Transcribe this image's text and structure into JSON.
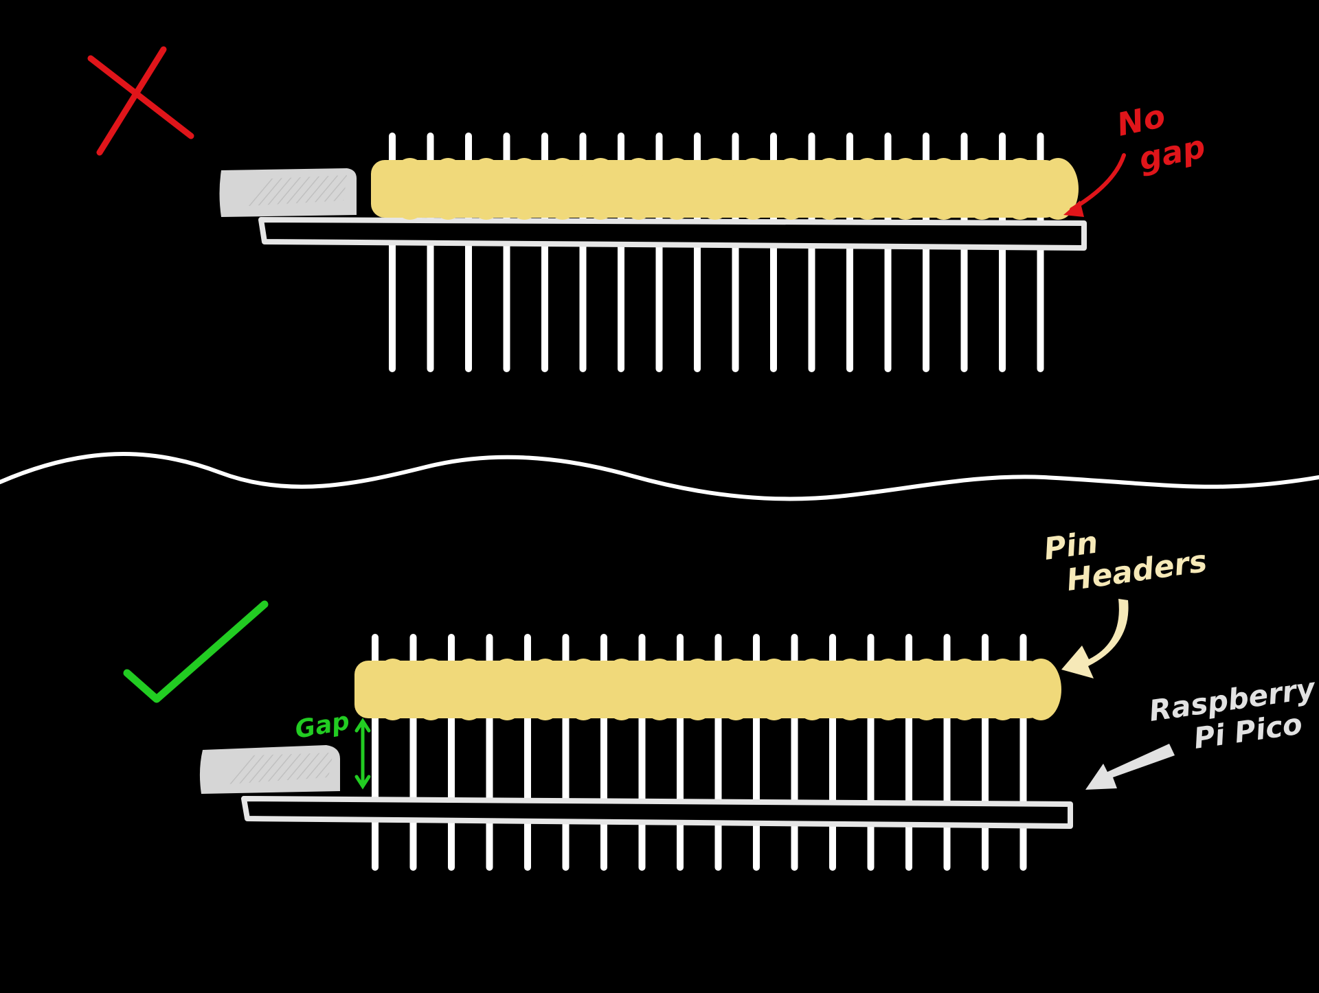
{
  "wrong_example": {
    "mark": "cross-icon",
    "annotation_line1": "No",
    "annotation_line2": "gap",
    "pin_count": 18,
    "colors": {
      "mark": "#e0151a",
      "annotation": "#e0151a"
    }
  },
  "right_example": {
    "mark": "checkmark-icon",
    "gap_label": "Gap",
    "pin_headers_label_line1": "Pin",
    "pin_headers_label_line2": "Headers",
    "pico_label_line1": "Raspberry",
    "pico_label_line2": "Pi Pico",
    "pin_count": 18,
    "colors": {
      "mark": "#22cc22",
      "gap": "#22cc22",
      "pin_headers_label": "#f6e9b8",
      "pico_label": "#e2e2e2"
    }
  },
  "colors": {
    "background": "#000000",
    "pins": "#ffffff",
    "header_body": "#f0d97a",
    "usb_connector": "#d6d6d6",
    "board_outline": "#e6e6e6",
    "divider": "#ffffff"
  }
}
